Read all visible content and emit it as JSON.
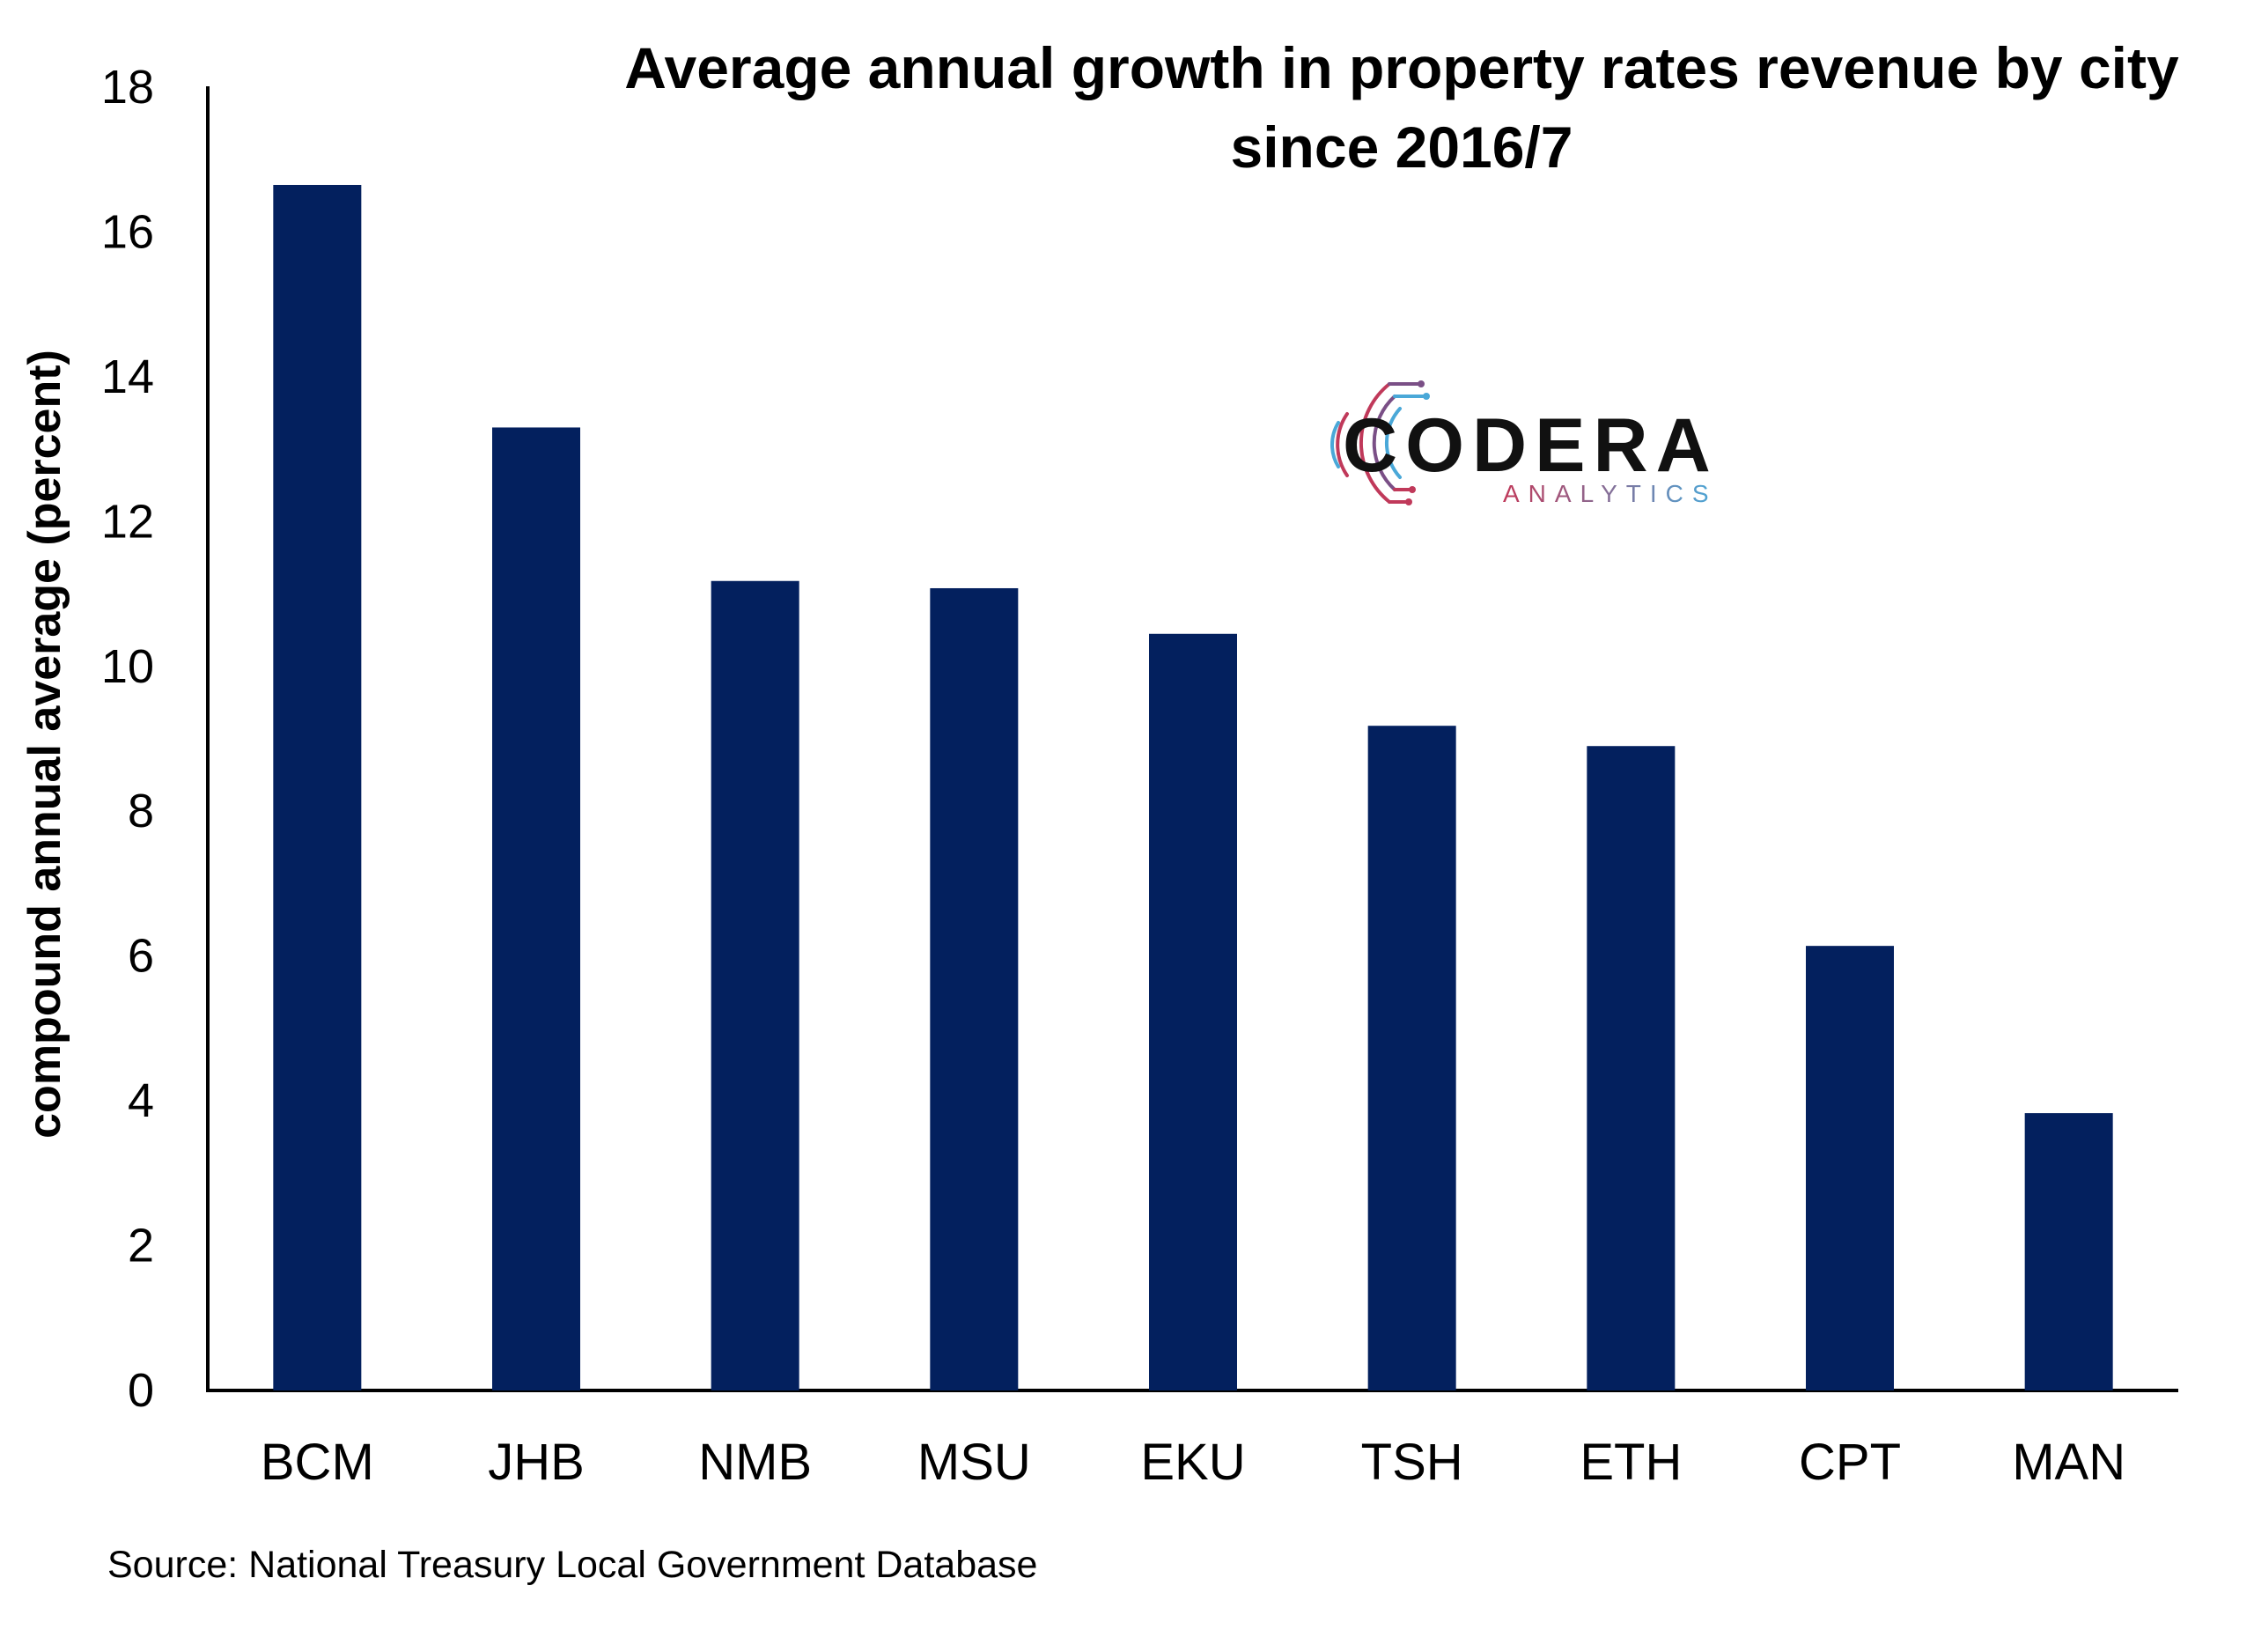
{
  "chart_data": {
    "type": "bar",
    "title_lines": [
      "Average annual growth in property rates revenue by city",
      "since 2016/7"
    ],
    "ylabel": "compound annual average (percent)",
    "xlabel": "",
    "categories": [
      "BCM",
      "JHB",
      "NMB",
      "MSU",
      "EKU",
      "TSH",
      "ETH",
      "CPT",
      "MAN"
    ],
    "values": [
      16.65,
      13.3,
      11.18,
      11.08,
      10.45,
      9.18,
      8.9,
      6.14,
      3.83
    ],
    "ylim": [
      0,
      18
    ],
    "yticks": [
      "0",
      "2",
      "4",
      "6",
      "8",
      "10",
      "12",
      "14",
      "16",
      "18"
    ],
    "grid": false,
    "legend": "none",
    "bar_color": "#03205e",
    "axis_color": "#000000"
  },
  "logo": {
    "brand": "CODERA",
    "tagline": "ANALYTICS",
    "brand_color": "#111111",
    "tagline_color_start": "#c0395a",
    "tagline_color_end": "#4aa8d8"
  },
  "source_note": "Source: National Treasury Local Government Database"
}
